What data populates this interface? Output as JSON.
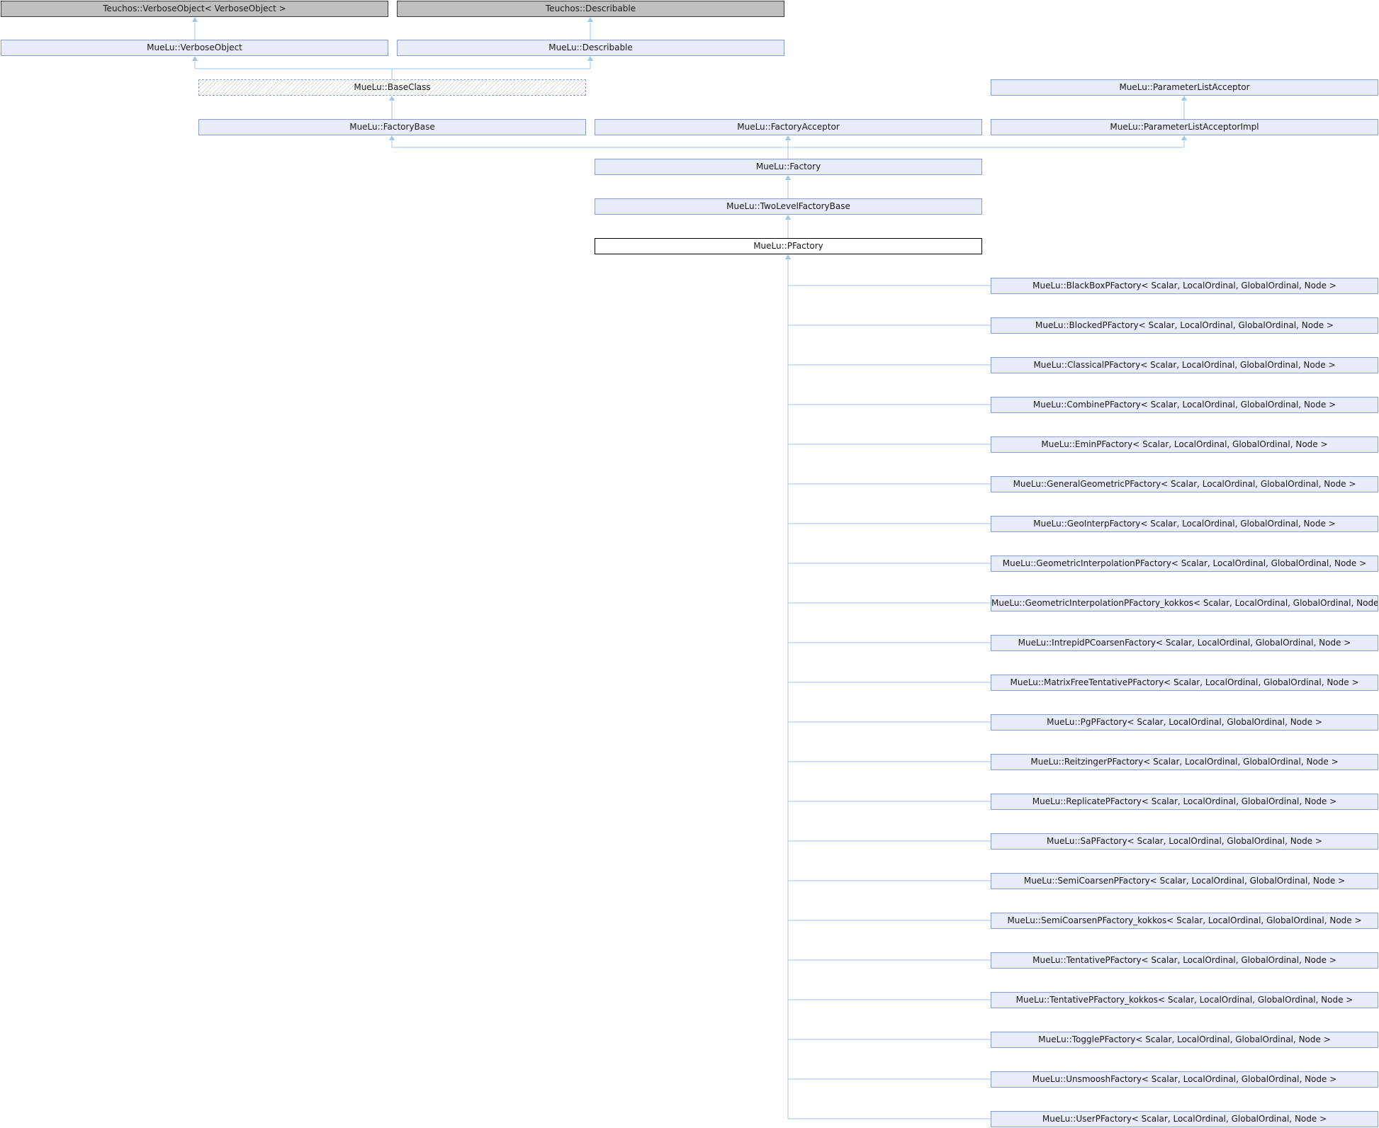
{
  "colors": {
    "node_fill": "#e8ecf6",
    "node_border": "#8b9dc8",
    "external_fill": "#bfbfbf",
    "edge": "#9ccaea"
  },
  "nodes": {
    "teuchos_verboseobject": "Teuchos::VerboseObject< VerboseObject >",
    "teuchos_describable": "Teuchos::Describable",
    "verboseobject": "MueLu::VerboseObject",
    "describable": "MueLu::Describable",
    "baseclass": "MueLu::BaseClass",
    "parameterlistacceptor": "MueLu::ParameterListAcceptor",
    "factorybase": "MueLu::FactoryBase",
    "factoryacceptor": "MueLu::FactoryAcceptor",
    "parameterlistacceptorimpl": "MueLu::ParameterListAcceptorImpl",
    "factory": "MueLu::Factory",
    "twolevelfactorybase": "MueLu::TwoLevelFactoryBase",
    "pfactory": "MueLu::PFactory"
  },
  "derived": [
    "MueLu::BlackBoxPFactory< Scalar, LocalOrdinal, GlobalOrdinal, Node >",
    "MueLu::BlockedPFactory< Scalar, LocalOrdinal, GlobalOrdinal, Node >",
    "MueLu::ClassicalPFactory< Scalar, LocalOrdinal, GlobalOrdinal, Node >",
    "MueLu::CombinePFactory< Scalar, LocalOrdinal, GlobalOrdinal, Node >",
    "MueLu::EminPFactory< Scalar, LocalOrdinal, GlobalOrdinal, Node >",
    "MueLu::GeneralGeometricPFactory< Scalar, LocalOrdinal, GlobalOrdinal, Node >",
    "MueLu::GeoInterpFactory< Scalar, LocalOrdinal, GlobalOrdinal, Node >",
    "MueLu::GeometricInterpolationPFactory< Scalar, LocalOrdinal, GlobalOrdinal, Node >",
    "MueLu::GeometricInterpolationPFactory_kokkos< Scalar, LocalOrdinal, GlobalOrdinal, Node >",
    "MueLu::IntrepidPCoarsenFactory< Scalar, LocalOrdinal, GlobalOrdinal, Node >",
    "MueLu::MatrixFreeTentativePFactory< Scalar, LocalOrdinal, GlobalOrdinal, Node >",
    "MueLu::PgPFactory< Scalar, LocalOrdinal, GlobalOrdinal, Node >",
    "MueLu::ReitzingerPFactory< Scalar, LocalOrdinal, GlobalOrdinal, Node >",
    "MueLu::ReplicatePFactory< Scalar, LocalOrdinal, GlobalOrdinal, Node >",
    "MueLu::SaPFactory< Scalar, LocalOrdinal, GlobalOrdinal, Node >",
    "MueLu::SemiCoarsenPFactory< Scalar, LocalOrdinal, GlobalOrdinal, Node >",
    "MueLu::SemiCoarsenPFactory_kokkos< Scalar, LocalOrdinal, GlobalOrdinal, Node >",
    "MueLu::TentativePFactory< Scalar, LocalOrdinal, GlobalOrdinal, Node >",
    "MueLu::TentativePFactory_kokkos< Scalar, LocalOrdinal, GlobalOrdinal, Node >",
    "MueLu::TogglePFactory< Scalar, LocalOrdinal, GlobalOrdinal, Node >",
    "MueLu::UnsmooshFactory< Scalar, LocalOrdinal, GlobalOrdinal, Node >",
    "MueLu::UserPFactory< Scalar, LocalOrdinal, GlobalOrdinal, Node >"
  ]
}
